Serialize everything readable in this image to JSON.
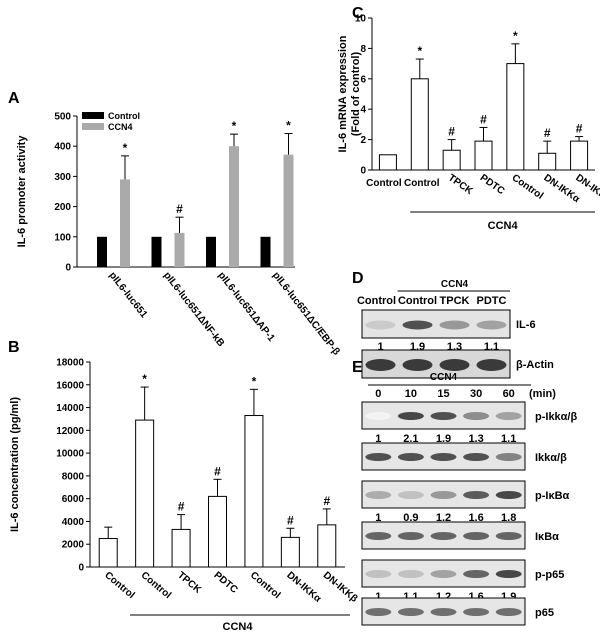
{
  "chart_data": [
    {
      "panel": "A",
      "type": "bar",
      "ylabel": "IL-6 promoter activity",
      "ylim": [
        0,
        500
      ],
      "yticks": [
        0,
        100,
        200,
        300,
        400,
        500
      ],
      "categories": [
        "pIL6-luc651",
        "pIL6-luc651ΔNF-kB",
        "pIL6-luc651ΔAP-1",
        "pIL6-luc651ΔC/EBP-β"
      ],
      "legend_position": "top-left",
      "series": [
        {
          "name": "Control",
          "color": "#000000",
          "values": [
            100,
            100,
            100,
            100
          ],
          "errors": [
            0,
            0,
            0,
            0
          ]
        },
        {
          "name": "CCN4",
          "color": "#aaaaaa",
          "values": [
            290,
            113,
            400,
            372
          ],
          "errors": [
            78,
            52,
            40,
            70
          ]
        }
      ],
      "annotations": [
        "*",
        "#",
        "*",
        "*"
      ]
    },
    {
      "panel": "B",
      "type": "bar",
      "ylabel": "IL-6 concentration (pg/ml)",
      "ylim": [
        0,
        18000
      ],
      "yticks": [
        0,
        2000,
        4000,
        6000,
        8000,
        10000,
        12000,
        14000,
        16000,
        18000
      ],
      "categories": [
        "Control",
        "Control",
        "TPCK",
        "PDTC",
        "Control",
        "DN-IKKα",
        "DN-IKKβ"
      ],
      "values": [
        2500,
        12900,
        3300,
        6200,
        13300,
        2600,
        3700
      ],
      "errors": [
        1000,
        2900,
        1300,
        1500,
        2300,
        800,
        1400
      ],
      "annotations": [
        "",
        "*",
        "#",
        "#",
        "*",
        "#",
        "#"
      ],
      "group_label": "CCN4"
    },
    {
      "panel": "C",
      "type": "bar",
      "ylabel": "IL-6 mRNA expression",
      "ylabel2": "(Fold of control)",
      "ylim": [
        0,
        10
      ],
      "yticks": [
        0,
        2,
        4,
        6,
        8,
        10
      ],
      "categories": [
        "Control",
        "Control",
        "TPCK",
        "PDTC",
        "Control",
        "DN-IKKα",
        "DN-IKKβ"
      ],
      "values": [
        1,
        6,
        1.3,
        1.9,
        7,
        1.1,
        1.9
      ],
      "errors": [
        0,
        1.3,
        0.7,
        0.9,
        1.3,
        0.8,
        0.3
      ],
      "annotations": [
        "",
        "*",
        "#",
        "#",
        "*",
        "#",
        "#"
      ],
      "group_label": "CCN4"
    }
  ],
  "blot_d": {
    "panel": "D",
    "header": "CCN4",
    "lanes": [
      "Control",
      "Control",
      "TPCK",
      "PDTC"
    ],
    "rows": [
      {
        "label": "IL-6",
        "values": [
          "1",
          "1.9",
          "1.3",
          "1.1"
        ],
        "intensity": [
          0.25,
          0.85,
          0.5,
          0.45
        ]
      },
      {
        "label": "β-Actin",
        "values": [],
        "intensity": [
          0.95,
          0.95,
          0.95,
          0.95
        ]
      }
    ]
  },
  "blot_e": {
    "panel": "E",
    "header": "CCN4",
    "lanes": [
      "0",
      "10",
      "15",
      "30",
      "60"
    ],
    "unit": "(min)",
    "rows": [
      {
        "label": "p-Ikkα/β",
        "values": [
          "1",
          "2.1",
          "1.9",
          "1.3",
          "1.1"
        ],
        "intensity": [
          0.05,
          0.9,
          0.85,
          0.55,
          0.45
        ]
      },
      {
        "label": "Ikkα/β",
        "values": [],
        "intensity": [
          0.85,
          0.85,
          0.85,
          0.85,
          0.6
        ]
      },
      {
        "label": "p-IκBα",
        "values": [
          "1",
          "0.9",
          "1.2",
          "1.6",
          "1.8"
        ],
        "intensity": [
          0.4,
          0.3,
          0.5,
          0.8,
          0.9
        ]
      },
      {
        "label": "IκBα",
        "values": [],
        "intensity": [
          0.75,
          0.75,
          0.75,
          0.75,
          0.75
        ]
      },
      {
        "label": "p-p65",
        "values": [
          "1",
          "1.1",
          "1.2",
          "1.6",
          "1.9"
        ],
        "intensity": [
          0.3,
          0.3,
          0.45,
          0.75,
          0.9
        ]
      },
      {
        "label": "p65",
        "values": [],
        "intensity": [
          0.7,
          0.7,
          0.7,
          0.7,
          0.7
        ]
      }
    ]
  },
  "panel_letters": [
    "A",
    "B",
    "C",
    "D",
    "E"
  ]
}
